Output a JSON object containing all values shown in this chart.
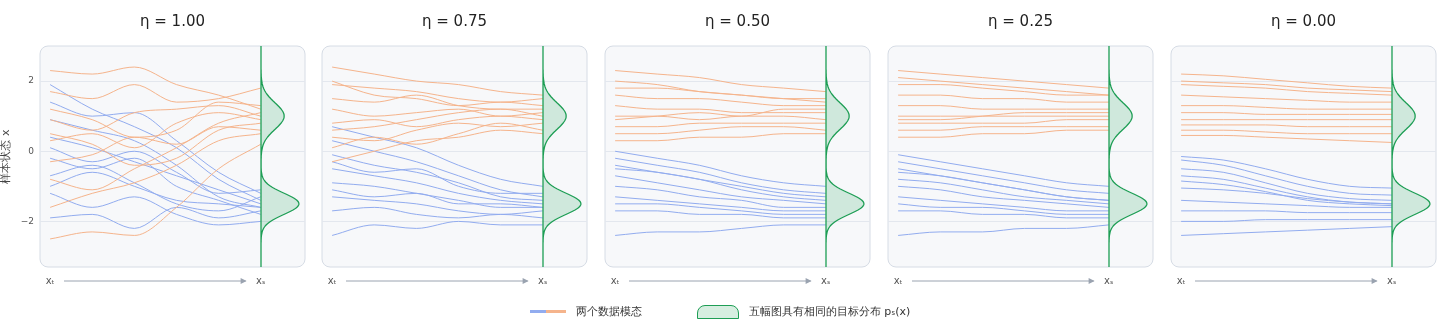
{
  "chart_data": [
    {
      "type": "line",
      "title": "η = 1.00",
      "ylabel": "样本状态 x",
      "categories": [
        "xₜ",
        null,
        null,
        null,
        null,
        "xₛ"
      ],
      "ylim": [
        -3.3,
        3.0
      ],
      "yticks": [
        -2,
        0,
        2
      ],
      "grid": "y",
      "legend": "bottom",
      "annotations": [
        "五幅图具有相同的目标分布 pₛ(x)"
      ],
      "series": [
        {
          "name": "两个数据模态",
          "color": "#f5b48c",
          "values": [
            2.3,
            2.2,
            2.4,
            1.9,
            1.6,
            1.2
          ]
        },
        {
          "color": "#f5b48c",
          "values": [
            1.7,
            1.5,
            1.9,
            1.4,
            1.5,
            1.8
          ]
        },
        {
          "color": "#f5b48c",
          "values": [
            0.9,
            0.6,
            1.1,
            1.2,
            1.3,
            1.0
          ]
        },
        {
          "color": "#f5b48c",
          "values": [
            0.3,
            0.5,
            0.1,
            0.8,
            1.1,
            0.9
          ]
        },
        {
          "color": "#f5b48c",
          "values": [
            -0.3,
            -0.1,
            0.4,
            0.2,
            0.7,
            0.6
          ]
        },
        {
          "color": "#f5b48c",
          "values": [
            -0.8,
            -1.1,
            -0.5,
            0.1,
            0.8,
            1.1
          ]
        },
        {
          "color": "#f5b48c",
          "values": [
            -1.6,
            -1.2,
            -0.9,
            -0.4,
            0.3,
            0.5
          ]
        },
        {
          "color": "#f5b48c",
          "values": [
            -2.5,
            -2.3,
            -2.4,
            -1.6,
            -0.5,
            0.2
          ]
        },
        {
          "color": "#f5b48c",
          "values": [
            1.2,
            0.9,
            0.4,
            0.6,
            1.4,
            1.3
          ]
        },
        {
          "color": "#f5b48c",
          "values": [
            0.5,
            0.2,
            -0.4,
            -0.2,
            0.6,
            0.8
          ]
        },
        {
          "color": "#92acef",
          "values": [
            1.9,
            1.2,
            0.7,
            0.1,
            -0.8,
            -1.4
          ]
        },
        {
          "color": "#92acef",
          "values": [
            1.4,
            1.0,
            1.1,
            0.3,
            -0.6,
            -1.2
          ]
        },
        {
          "color": "#92acef",
          "values": [
            0.9,
            0.6,
            0.3,
            -0.4,
            -1.3,
            -1.6
          ]
        },
        {
          "color": "#92acef",
          "values": [
            0.4,
            0.1,
            -0.3,
            -0.7,
            -1.1,
            -1.5
          ]
        },
        {
          "color": "#92acef",
          "values": [
            -0.2,
            -0.5,
            -0.2,
            -1.0,
            -1.4,
            -1.8
          ]
        },
        {
          "color": "#92acef",
          "values": [
            -0.7,
            -0.4,
            -0.9,
            -1.5,
            -1.7,
            -1.3
          ]
        },
        {
          "color": "#92acef",
          "values": [
            -1.2,
            -1.6,
            -1.3,
            -1.8,
            -2.1,
            -2.0
          ]
        },
        {
          "color": "#92acef",
          "values": [
            -1.9,
            -1.8,
            -2.2,
            -1.6,
            -1.9,
            -1.7
          ]
        },
        {
          "color": "#92acef",
          "values": [
            0.1,
            -0.3,
            0.0,
            -0.6,
            -1.2,
            -1.1
          ]
        },
        {
          "color": "#92acef",
          "values": [
            -1.0,
            -0.6,
            -1.0,
            -1.4,
            -1.5,
            -1.6
          ]
        }
      ]
    },
    {
      "type": "line",
      "title": "η = 0.75",
      "categories": [
        "xₜ",
        null,
        null,
        null,
        null,
        "xₛ"
      ],
      "ylim": [
        -3.3,
        3.0
      ],
      "yticks": [
        -2,
        0,
        2
      ],
      "grid": "y",
      "tick_labels": "x",
      "series": [
        {
          "color": "#f5b48c",
          "values": [
            2.4,
            2.2,
            2.0,
            1.9,
            1.7,
            1.6
          ]
        },
        {
          "color": "#f5b48c",
          "values": [
            1.9,
            1.8,
            1.7,
            1.5,
            1.4,
            1.5
          ]
        },
        {
          "color": "#f5b48c",
          "values": [
            1.5,
            1.4,
            1.6,
            1.3,
            1.2,
            1.2
          ]
        },
        {
          "color": "#f5b48c",
          "values": [
            1.2,
            1.0,
            1.1,
            1.2,
            1.0,
            1.1
          ]
        },
        {
          "color": "#f5b48c",
          "values": [
            0.8,
            0.9,
            0.7,
            0.9,
            1.0,
            0.9
          ]
        },
        {
          "color": "#f5b48c",
          "values": [
            0.4,
            0.3,
            0.6,
            0.8,
            0.7,
            0.8
          ]
        },
        {
          "color": "#f5b48c",
          "values": [
            0.1,
            0.4,
            0.2,
            0.5,
            0.8,
            0.6
          ]
        },
        {
          "color": "#f5b48c",
          "values": [
            -0.3,
            0.0,
            0.3,
            0.4,
            0.6,
            0.5
          ]
        },
        {
          "color": "#f5b48c",
          "values": [
            2.0,
            1.6,
            1.5,
            1.3,
            1.4,
            1.3
          ]
        },
        {
          "color": "#f5b48c",
          "values": [
            0.6,
            0.7,
            0.9,
            1.1,
            1.2,
            1.0
          ]
        },
        {
          "color": "#92acef",
          "values": [
            0.7,
            0.4,
            0.1,
            -0.4,
            -0.8,
            -1.0
          ]
        },
        {
          "color": "#92acef",
          "values": [
            0.3,
            0.0,
            -0.3,
            -0.7,
            -1.1,
            -1.3
          ]
        },
        {
          "color": "#92acef",
          "values": [
            -0.1,
            -0.4,
            -0.6,
            -0.9,
            -1.3,
            -1.4
          ]
        },
        {
          "color": "#92acef",
          "values": [
            -0.5,
            -0.7,
            -0.9,
            -1.2,
            -1.4,
            -1.5
          ]
        },
        {
          "color": "#92acef",
          "values": [
            -0.9,
            -1.0,
            -1.2,
            -1.4,
            -1.6,
            -1.6
          ]
        },
        {
          "color": "#92acef",
          "values": [
            -1.3,
            -1.4,
            -1.5,
            -1.7,
            -1.8,
            -1.7
          ]
        },
        {
          "color": "#92acef",
          "values": [
            -1.7,
            -1.6,
            -1.8,
            -1.9,
            -1.8,
            -1.9
          ]
        },
        {
          "color": "#92acef",
          "values": [
            -2.4,
            -2.1,
            -2.2,
            -2.0,
            -2.1,
            -2.1
          ]
        },
        {
          "color": "#92acef",
          "values": [
            -0.3,
            -0.6,
            -0.5,
            -1.0,
            -1.2,
            -1.2
          ]
        },
        {
          "color": "#92acef",
          "values": [
            -1.1,
            -1.3,
            -1.2,
            -1.5,
            -1.5,
            -1.6
          ]
        }
      ]
    },
    {
      "type": "line",
      "title": "η = 0.50",
      "categories": [
        "xₜ",
        null,
        null,
        null,
        null,
        "xₛ"
      ],
      "ylim": [
        -3.3,
        3.0
      ],
      "yticks": [
        -2,
        0,
        2
      ],
      "grid": "y",
      "tick_labels": "x",
      "series": [
        {
          "color": "#f5b48c",
          "values": [
            2.3,
            2.2,
            2.1,
            1.9,
            1.8,
            1.7
          ]
        },
        {
          "color": "#f5b48c",
          "values": [
            1.8,
            1.8,
            1.7,
            1.6,
            1.5,
            1.5
          ]
        },
        {
          "color": "#f5b48c",
          "values": [
            1.6,
            1.5,
            1.5,
            1.4,
            1.3,
            1.3
          ]
        },
        {
          "color": "#f5b48c",
          "values": [
            1.3,
            1.2,
            1.2,
            1.1,
            1.1,
            1.1
          ]
        },
        {
          "color": "#f5b48c",
          "values": [
            1.0,
            1.0,
            0.9,
            1.0,
            1.0,
            0.9
          ]
        },
        {
          "color": "#f5b48c",
          "values": [
            0.7,
            0.7,
            0.8,
            0.8,
            0.8,
            0.8
          ]
        },
        {
          "color": "#f5b48c",
          "values": [
            0.5,
            0.5,
            0.6,
            0.7,
            0.7,
            0.6
          ]
        },
        {
          "color": "#f5b48c",
          "values": [
            0.3,
            0.3,
            0.4,
            0.4,
            0.5,
            0.5
          ]
        },
        {
          "color": "#f5b48c",
          "values": [
            2.0,
            1.9,
            1.7,
            1.6,
            1.5,
            1.4
          ]
        },
        {
          "color": "#f5b48c",
          "values": [
            0.9,
            1.0,
            1.1,
            1.0,
            1.2,
            1.2
          ]
        },
        {
          "color": "#92acef",
          "values": [
            0.0,
            -0.2,
            -0.4,
            -0.7,
            -0.9,
            -1.0
          ]
        },
        {
          "color": "#92acef",
          "values": [
            -0.2,
            -0.4,
            -0.6,
            -0.9,
            -1.1,
            -1.2
          ]
        },
        {
          "color": "#92acef",
          "values": [
            -0.4,
            -0.6,
            -0.8,
            -1.1,
            -1.3,
            -1.4
          ]
        },
        {
          "color": "#92acef",
          "values": [
            -0.7,
            -0.9,
            -1.1,
            -1.3,
            -1.4,
            -1.5
          ]
        },
        {
          "color": "#92acef",
          "values": [
            -1.0,
            -1.1,
            -1.3,
            -1.4,
            -1.6,
            -1.6
          ]
        },
        {
          "color": "#92acef",
          "values": [
            -1.3,
            -1.4,
            -1.5,
            -1.6,
            -1.7,
            -1.7
          ]
        },
        {
          "color": "#92acef",
          "values": [
            -1.7,
            -1.7,
            -1.8,
            -1.8,
            -1.9,
            -1.9
          ]
        },
        {
          "color": "#92acef",
          "values": [
            -2.4,
            -2.3,
            -2.3,
            -2.2,
            -2.1,
            -2.1
          ]
        },
        {
          "color": "#92acef",
          "values": [
            -0.5,
            -0.6,
            -0.8,
            -1.0,
            -1.2,
            -1.3
          ]
        },
        {
          "color": "#92acef",
          "values": [
            -1.5,
            -1.5,
            -1.6,
            -1.7,
            -1.8,
            -1.8
          ]
        }
      ]
    },
    {
      "type": "line",
      "title": "η = 0.25",
      "categories": [
        "xₜ",
        null,
        null,
        null,
        null,
        "xₛ"
      ],
      "ylim": [
        -3.3,
        3.0
      ],
      "yticks": [
        -2,
        0,
        2
      ],
      "grid": "y",
      "tick_labels": "x",
      "series": [
        {
          "color": "#f5b48c",
          "values": [
            2.3,
            2.2,
            2.1,
            2.0,
            1.9,
            1.8
          ]
        },
        {
          "color": "#f5b48c",
          "values": [
            1.9,
            1.9,
            1.8,
            1.7,
            1.6,
            1.6
          ]
        },
        {
          "color": "#f5b48c",
          "values": [
            1.6,
            1.6,
            1.5,
            1.5,
            1.4,
            1.4
          ]
        },
        {
          "color": "#f5b48c",
          "values": [
            1.3,
            1.3,
            1.2,
            1.2,
            1.2,
            1.2
          ]
        },
        {
          "color": "#f5b48c",
          "values": [
            1.0,
            1.0,
            1.0,
            1.0,
            1.0,
            1.0
          ]
        },
        {
          "color": "#f5b48c",
          "values": [
            0.8,
            0.8,
            0.8,
            0.8,
            0.9,
            0.9
          ]
        },
        {
          "color": "#f5b48c",
          "values": [
            0.6,
            0.6,
            0.7,
            0.7,
            0.7,
            0.7
          ]
        },
        {
          "color": "#f5b48c",
          "values": [
            0.4,
            0.4,
            0.5,
            0.5,
            0.6,
            0.6
          ]
        },
        {
          "color": "#f5b48c",
          "values": [
            2.1,
            2.0,
            1.9,
            1.8,
            1.7,
            1.6
          ]
        },
        {
          "color": "#f5b48c",
          "values": [
            0.9,
            0.9,
            1.0,
            1.1,
            1.1,
            1.1
          ]
        },
        {
          "color": "#92acef",
          "values": [
            -0.1,
            -0.3,
            -0.5,
            -0.7,
            -0.9,
            -1.0
          ]
        },
        {
          "color": "#92acef",
          "values": [
            -0.3,
            -0.5,
            -0.7,
            -0.9,
            -1.1,
            -1.2
          ]
        },
        {
          "color": "#92acef",
          "values": [
            -0.5,
            -0.7,
            -0.9,
            -1.1,
            -1.3,
            -1.4
          ]
        },
        {
          "color": "#92acef",
          "values": [
            -0.8,
            -0.9,
            -1.1,
            -1.3,
            -1.4,
            -1.5
          ]
        },
        {
          "color": "#92acef",
          "values": [
            -1.0,
            -1.1,
            -1.3,
            -1.4,
            -1.5,
            -1.6
          ]
        },
        {
          "color": "#92acef",
          "values": [
            -1.3,
            -1.4,
            -1.5,
            -1.6,
            -1.7,
            -1.7
          ]
        },
        {
          "color": "#92acef",
          "values": [
            -1.7,
            -1.7,
            -1.8,
            -1.8,
            -1.9,
            -1.9
          ]
        },
        {
          "color": "#92acef",
          "values": [
            -2.4,
            -2.3,
            -2.3,
            -2.2,
            -2.2,
            -2.1
          ]
        },
        {
          "color": "#92acef",
          "values": [
            -0.6,
            -0.7,
            -0.9,
            -1.1,
            -1.3,
            -1.4
          ]
        },
        {
          "color": "#92acef",
          "values": [
            -1.5,
            -1.6,
            -1.6,
            -1.7,
            -1.8,
            -1.8
          ]
        }
      ]
    },
    {
      "type": "line",
      "title": "η = 0.00",
      "categories": [
        "xₜ",
        null,
        null,
        null,
        null,
        "xₛ"
      ],
      "ylim": [
        -3.3,
        3.0
      ],
      "yticks": [
        -2,
        0,
        2
      ],
      "grid": "y",
      "tick_labels": "x",
      "series": [
        {
          "color": "#f5b48c",
          "values": [
            2.2,
            2.15,
            2.05,
            1.95,
            1.85,
            1.8
          ]
        },
        {
          "color": "#f5b48c",
          "values": [
            1.9,
            1.85,
            1.8,
            1.7,
            1.65,
            1.6
          ]
        },
        {
          "color": "#f5b48c",
          "values": [
            1.6,
            1.55,
            1.5,
            1.45,
            1.4,
            1.4
          ]
        },
        {
          "color": "#f5b48c",
          "values": [
            1.3,
            1.3,
            1.25,
            1.2,
            1.2,
            1.2
          ]
        },
        {
          "color": "#f5b48c",
          "values": [
            1.1,
            1.1,
            1.05,
            1.05,
            1.05,
            1.05
          ]
        },
        {
          "color": "#f5b48c",
          "values": [
            0.9,
            0.9,
            0.9,
            0.9,
            0.9,
            0.9
          ]
        },
        {
          "color": "#f5b48c",
          "values": [
            0.75,
            0.75,
            0.75,
            0.7,
            0.7,
            0.7
          ]
        },
        {
          "color": "#f5b48c",
          "values": [
            0.6,
            0.6,
            0.55,
            0.5,
            0.5,
            0.5
          ]
        },
        {
          "color": "#f5b48c",
          "values": [
            0.45,
            0.45,
            0.4,
            0.35,
            0.3,
            0.25
          ]
        },
        {
          "color": "#f5b48c",
          "values": [
            2.0,
            1.95,
            1.9,
            1.8,
            1.75,
            1.7
          ]
        },
        {
          "color": "#92acef",
          "values": [
            -0.15,
            -0.25,
            -0.5,
            -0.8,
            -1.0,
            -1.05
          ]
        },
        {
          "color": "#92acef",
          "values": [
            -0.25,
            -0.4,
            -0.7,
            -1.0,
            -1.2,
            -1.25
          ]
        },
        {
          "color": "#92acef",
          "values": [
            -0.5,
            -0.6,
            -0.9,
            -1.2,
            -1.35,
            -1.4
          ]
        },
        {
          "color": "#92acef",
          "values": [
            -0.7,
            -0.8,
            -1.05,
            -1.3,
            -1.45,
            -1.5
          ]
        },
        {
          "color": "#92acef",
          "values": [
            -0.85,
            -0.95,
            -1.15,
            -1.4,
            -1.5,
            -1.55
          ]
        },
        {
          "color": "#92acef",
          "values": [
            -1.05,
            -1.1,
            -1.2,
            -1.35,
            -1.45,
            -1.5
          ]
        },
        {
          "color": "#92acef",
          "values": [
            -1.4,
            -1.45,
            -1.5,
            -1.55,
            -1.6,
            -1.6
          ]
        },
        {
          "color": "#92acef",
          "values": [
            -1.7,
            -1.7,
            -1.7,
            -1.75,
            -1.75,
            -1.75
          ]
        },
        {
          "color": "#92acef",
          "values": [
            -2.0,
            -2.0,
            -1.95,
            -1.95,
            -1.95,
            -1.95
          ]
        },
        {
          "color": "#92acef",
          "values": [
            -2.4,
            -2.35,
            -2.3,
            -2.25,
            -2.2,
            -2.15
          ]
        }
      ]
    }
  ]
}
